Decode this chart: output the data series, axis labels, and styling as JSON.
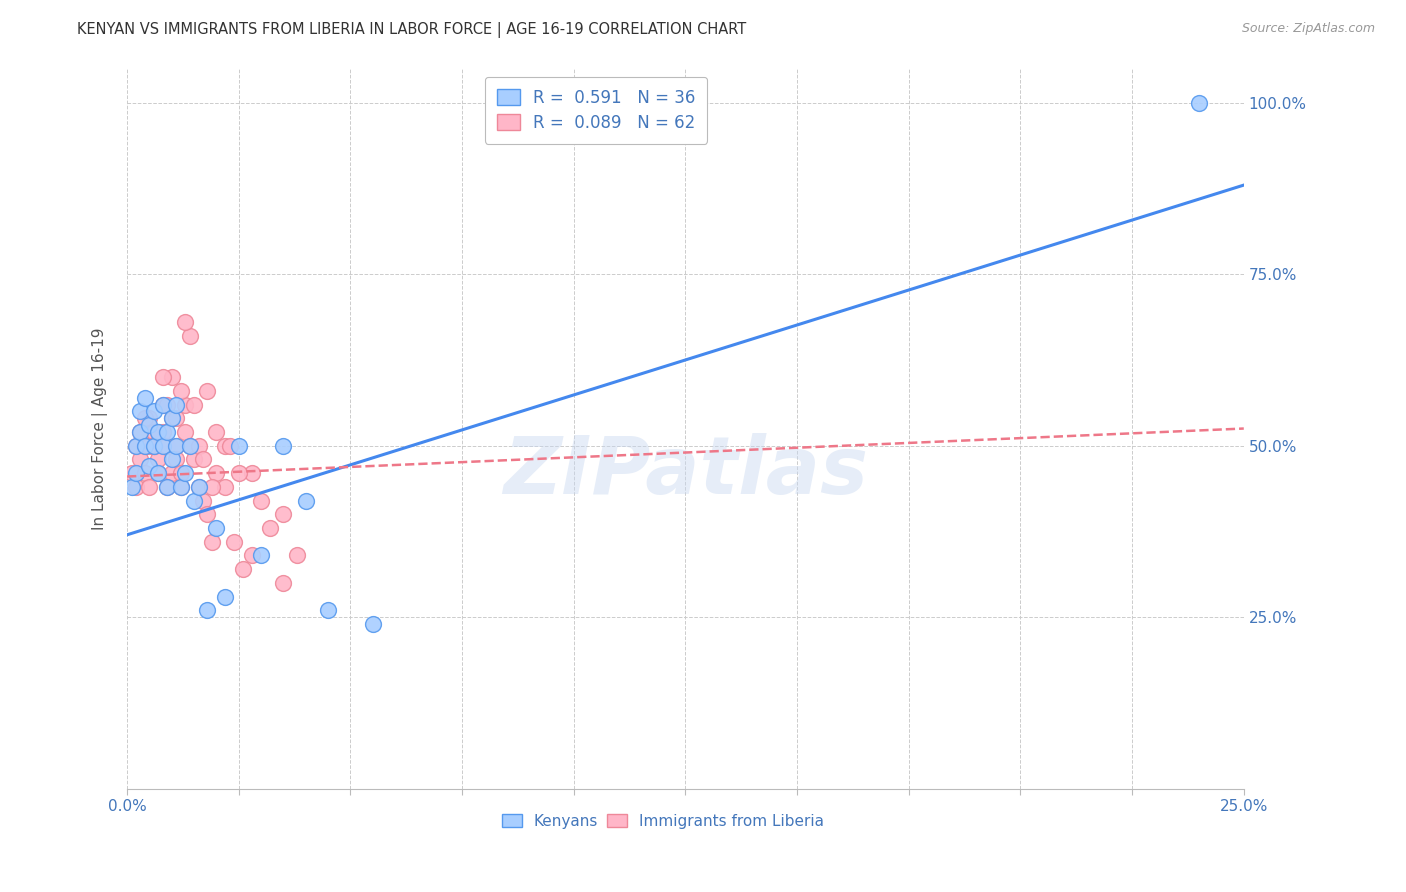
{
  "title": "KENYAN VS IMMIGRANTS FROM LIBERIA IN LABOR FORCE | AGE 16-19 CORRELATION CHART",
  "source": "Source: ZipAtlas.com",
  "ylabel": "In Labor Force | Age 16-19",
  "xlim": [
    0.0,
    0.25
  ],
  "ylim": [
    0.0,
    1.05
  ],
  "yticks": [
    0.0,
    0.25,
    0.5,
    0.75,
    1.0
  ],
  "ytick_labels_right": [
    "",
    "25.0%",
    "50.0%",
    "75.0%",
    "100.0%"
  ],
  "xticks": [
    0.0,
    0.025,
    0.05,
    0.075,
    0.1,
    0.125,
    0.15,
    0.175,
    0.2,
    0.225,
    0.25
  ],
  "xtick_labels": [
    "0.0%",
    "",
    "",
    "",
    "",
    "",
    "",
    "",
    "",
    "",
    "25.0%"
  ],
  "watermark": "ZIPatlas",
  "legend_r1": "R =  0.591   N = 36",
  "legend_r2": "R =  0.089   N = 62",
  "color_kenyan": "#a8ceff",
  "color_liberia": "#ffb6c8",
  "color_edge_kenyan": "#5599ee",
  "color_edge_liberia": "#ee8899",
  "color_line_kenyan": "#4488ee",
  "color_line_liberia": "#ee7788",
  "color_text_blue": "#4477BB",
  "kenyan_trend_x0": 0.0,
  "kenyan_trend_y0": 0.37,
  "kenyan_trend_x1": 0.25,
  "kenyan_trend_y1": 0.88,
  "liberia_trend_x0": 0.0,
  "liberia_trend_y0": 0.455,
  "liberia_trend_x1": 0.25,
  "liberia_trend_y1": 0.525,
  "kenyan_x": [
    0.001,
    0.002,
    0.002,
    0.003,
    0.003,
    0.004,
    0.004,
    0.005,
    0.005,
    0.006,
    0.006,
    0.007,
    0.007,
    0.008,
    0.008,
    0.009,
    0.009,
    0.01,
    0.01,
    0.011,
    0.011,
    0.012,
    0.013,
    0.014,
    0.015,
    0.016,
    0.018,
    0.02,
    0.022,
    0.025,
    0.03,
    0.035,
    0.04,
    0.045,
    0.055,
    0.24
  ],
  "kenyan_y": [
    0.44,
    0.46,
    0.5,
    0.52,
    0.55,
    0.57,
    0.5,
    0.53,
    0.47,
    0.5,
    0.55,
    0.52,
    0.46,
    0.56,
    0.5,
    0.44,
    0.52,
    0.48,
    0.54,
    0.5,
    0.56,
    0.44,
    0.46,
    0.5,
    0.42,
    0.44,
    0.26,
    0.38,
    0.28,
    0.5,
    0.34,
    0.5,
    0.42,
    0.26,
    0.24,
    1.0
  ],
  "liberia_x": [
    0.001,
    0.002,
    0.002,
    0.003,
    0.003,
    0.004,
    0.004,
    0.005,
    0.005,
    0.006,
    0.006,
    0.007,
    0.007,
    0.008,
    0.008,
    0.009,
    0.009,
    0.01,
    0.01,
    0.011,
    0.011,
    0.012,
    0.012,
    0.013,
    0.013,
    0.014,
    0.015,
    0.016,
    0.017,
    0.018,
    0.019,
    0.02,
    0.022,
    0.024,
    0.026,
    0.028,
    0.03,
    0.032,
    0.035,
    0.038,
    0.01,
    0.014,
    0.018,
    0.022,
    0.028,
    0.035,
    0.012,
    0.008,
    0.006,
    0.004,
    0.016,
    0.02,
    0.025,
    0.005,
    0.007,
    0.009,
    0.011,
    0.013,
    0.015,
    0.017,
    0.019,
    0.023
  ],
  "liberia_y": [
    0.46,
    0.44,
    0.5,
    0.52,
    0.48,
    0.46,
    0.5,
    0.44,
    0.54,
    0.52,
    0.5,
    0.46,
    0.48,
    0.52,
    0.56,
    0.44,
    0.5,
    0.46,
    0.54,
    0.5,
    0.48,
    0.44,
    0.46,
    0.52,
    0.56,
    0.5,
    0.48,
    0.44,
    0.42,
    0.4,
    0.36,
    0.46,
    0.44,
    0.36,
    0.32,
    0.34,
    0.42,
    0.38,
    0.3,
    0.34,
    0.6,
    0.66,
    0.58,
    0.5,
    0.46,
    0.4,
    0.58,
    0.6,
    0.5,
    0.54,
    0.5,
    0.52,
    0.46,
    0.5,
    0.52,
    0.56,
    0.54,
    0.68,
    0.56,
    0.48,
    0.44,
    0.5
  ]
}
